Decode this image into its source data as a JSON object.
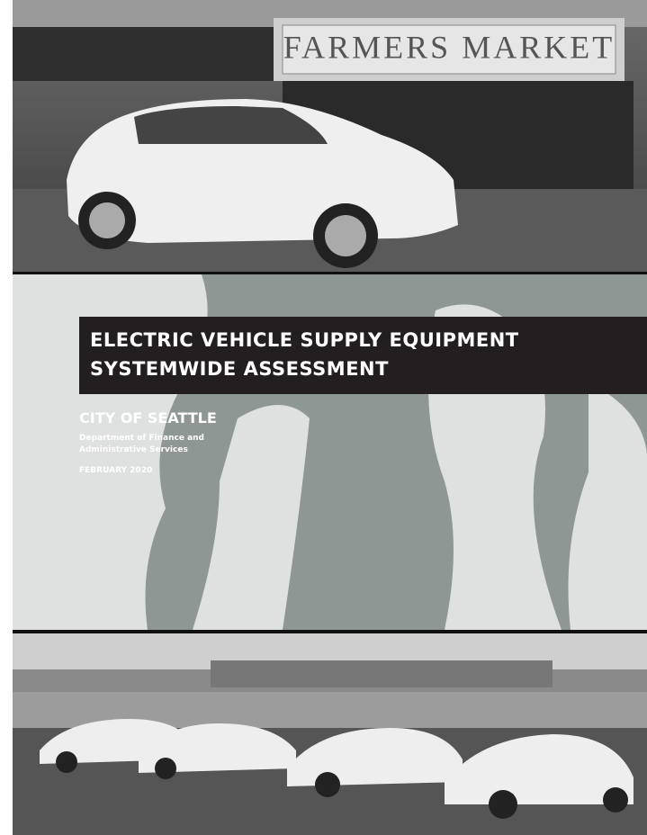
{
  "cover": {
    "photo_sign": "FARMERS MARKET",
    "title_lines": [
      "ELECTRIC VEHICLE SUPPLY EQUIPMENT",
      "SYSTEMWIDE ASSESSMENT"
    ],
    "organization": "CITY OF SEATTLE",
    "department_lines": [
      "Department of Finance and",
      "Administrative Services"
    ],
    "date": "FEBRUARY 2020"
  }
}
